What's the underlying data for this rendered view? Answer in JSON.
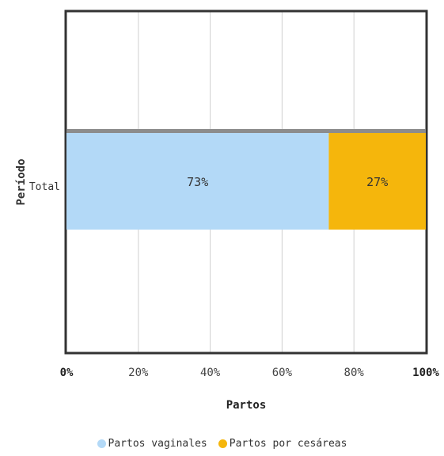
{
  "chart_data": {
    "type": "bar",
    "orientation": "horizontal",
    "stacked": true,
    "categories": [
      "Total"
    ],
    "series": [
      {
        "name": "Partos vaginales",
        "values": [
          73
        ],
        "label": "73%",
        "color": "#b3d9f7"
      },
      {
        "name": "Partos por cesáreas",
        "values": [
          27
        ],
        "label": "27%",
        "color": "#f5b60c"
      }
    ],
    "xlabel": "Partos",
    "ylabel": "Período",
    "xlim": [
      0,
      100
    ],
    "xticks": [
      "0%",
      "20%",
      "40%",
      "60%",
      "80%",
      "100%"
    ],
    "xtick_values": [
      0,
      20,
      40,
      60,
      80,
      100
    ],
    "grid": true,
    "legend_position": "bottom"
  }
}
